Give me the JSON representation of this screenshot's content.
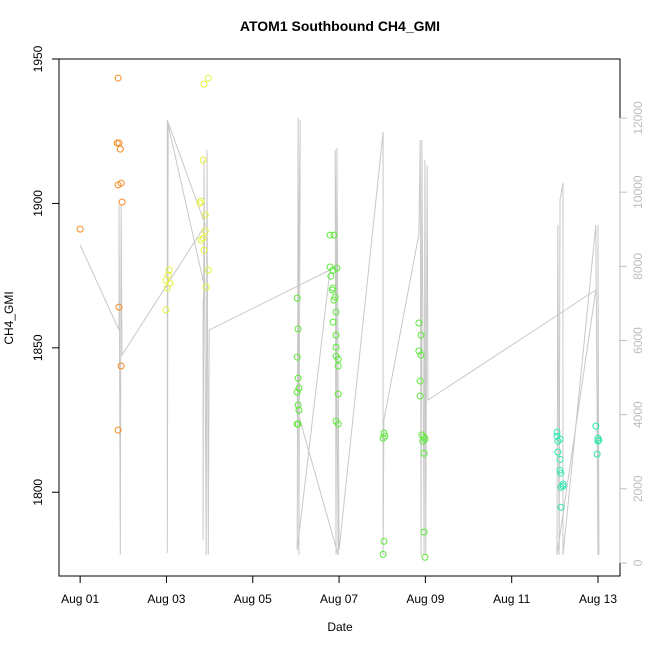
{
  "chart_data": {
    "type": "scatter",
    "title": "ATOM1 Southbound CH4_GMI",
    "x_label": "Date",
    "y_label": "CH4_GMI",
    "xlim": [
      -0.49,
      12.51
    ],
    "ylim": [
      1771,
      1950
    ],
    "y2lim": [
      -351,
      13592
    ],
    "xticks": [
      {
        "value": 0,
        "label": "Aug 01"
      },
      {
        "value": 2,
        "label": "Aug 03"
      },
      {
        "value": 4,
        "label": "Aug 05"
      },
      {
        "value": 6,
        "label": "Aug 07"
      },
      {
        "value": 8,
        "label": "Aug 09"
      },
      {
        "value": 10,
        "label": "Aug 11"
      },
      {
        "value": 12,
        "label": "Aug 13"
      }
    ],
    "yticks": [
      1800,
      1850,
      1900,
      1950
    ],
    "y2ticks": [
      0,
      2000,
      4000,
      6000,
      8000,
      10000,
      12000
    ],
    "series": [
      {
        "type": "line",
        "axis": "y2",
        "color": "#c8c8c8",
        "x": [
          0,
          0.9,
          0.9,
          0.93,
          0.95,
          0.97,
          2.9,
          2.02,
          2.02,
          2.04,
          2.9,
          2.85,
          2.85,
          2.87,
          2.92,
          2.94,
          2.97,
          2.99,
          5.79,
          5.03,
          5.05,
          5.07,
          5.1,
          5.03,
          5.98,
          5.91,
          5.93,
          5.95,
          6.0,
          7.02,
          7.02,
          7.04,
          7.85,
          7.88,
          7.9,
          7.92,
          7.97,
          7.99,
          8.01,
          8.04,
          8.06,
          11.95,
          11.05,
          11.07,
          11.1,
          11.12,
          11.19,
          11.19,
          11.95,
          12.0,
          12.0,
          12.02
        ],
        "values": [
          8576,
          6284,
          9655,
          216,
          9655,
          5610,
          9116,
          11948,
          270,
          11813,
          7363,
          7093,
          620,
          10869,
          216,
          11139,
          216,
          6284,
          7902,
          351,
          12002,
          216,
          11948,
          4126,
          216,
          11139,
          216,
          11193,
          351,
          11624,
          216,
          3857,
          8873,
          11408,
          216,
          11408,
          216,
          10869,
          216,
          10734,
          4396,
          7363,
          216,
          9116,
          216,
          9790,
          10249,
          216,
          9116,
          216,
          9116,
          216
        ]
      },
      {
        "type": "points",
        "color": "#f58a1f",
        "x": [
          0,
          0.88,
          0.86,
          0.9,
          0.93,
          0.88,
          0.95,
          0.97,
          0.9,
          0.95,
          0.88
        ],
        "values": [
          1891.1,
          1943.4,
          1920.9,
          1920.9,
          1918.8,
          1906.4,
          1907,
          1900.5,
          1864.1,
          1843.7,
          1821.5
        ]
      },
      {
        "type": "points",
        "color": "#e4f23a",
        "x": [
          2.87,
          2.97,
          2.8,
          2.78,
          2.9,
          2.85,
          2.85,
          2.8,
          2.9,
          2.87,
          2.97,
          2.92,
          2.06,
          2.04,
          2.08,
          1.99,
          2.02,
          1.99
        ],
        "values": [
          1941.3,
          1943.4,
          1900.8,
          1900.1,
          1896,
          1915,
          1888,
          1887.3,
          1890.4,
          1883.8,
          1876.9,
          1871,
          1876.9,
          1875.2,
          1872.4,
          1873.4,
          1870.7,
          1863.1
        ]
      },
      {
        "type": "points",
        "color": "#5ee83a",
        "x": [
          5.03,
          5.05,
          5.03,
          5.05,
          5.07,
          5.03,
          5.05,
          5.07,
          5.05,
          5.03,
          5.79,
          5.88,
          5.79,
          5.86,
          5.95,
          5.81,
          5.86,
          5.84,
          5.91,
          5.88,
          5.93,
          5.86,
          5.93,
          5.93,
          5.98,
          5.98,
          5.93,
          5.98,
          5.93,
          5.98,
          7.02,
          7.04,
          7.06,
          7.04,
          7.02,
          7.85,
          7.9,
          7.85,
          7.9,
          7.88,
          7.88,
          7.92,
          7.97,
          7.99,
          7.94,
          7.97,
          7.97,
          7.99
        ],
        "values": [
          1867.2,
          1856.5,
          1846.8,
          1839.5,
          1836,
          1834.7,
          1830.2,
          1828.4,
          1823.6,
          1823.6,
          1889,
          1889,
          1878,
          1876.9,
          1877.6,
          1874.8,
          1870.7,
          1870,
          1867.6,
          1866.5,
          1862.4,
          1858.9,
          1854.4,
          1850.2,
          1846.1,
          1843.7,
          1847.1,
          1834,
          1824.6,
          1823.6,
          1818.7,
          1820.5,
          1819.4,
          1783,
          1778.5,
          1858.6,
          1854.4,
          1848.9,
          1847.5,
          1838.5,
          1833.3,
          1819.8,
          1819.1,
          1818.4,
          1817.7,
          1813.5,
          1786.2,
          1777.5
        ]
      },
      {
        "type": "points",
        "color": "#2ee8b0",
        "x": [
          11.05,
          11.05,
          11.07,
          11.12,
          11.07,
          11.12,
          11.12,
          11.14,
          11.19,
          11.14,
          11.19,
          11.14,
          11.95,
          12,
          12.02,
          11.98,
          12
        ],
        "values": [
          1820.8,
          1819.4,
          1817.7,
          1818.4,
          1813.9,
          1811.4,
          1807.6,
          1806.6,
          1802.8,
          1801.7,
          1802.1,
          1794.8,
          1822.9,
          1818.7,
          1818,
          1813.2,
          1817.7
        ]
      }
    ]
  }
}
